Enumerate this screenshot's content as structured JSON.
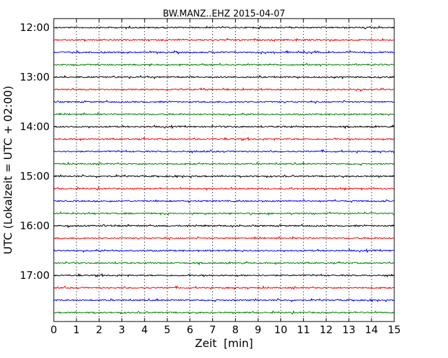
{
  "chart_data": {
    "type": "line",
    "title": "BW.MANZ..EHZ 2015-04-07",
    "xlabel": "Zeit  [min]",
    "ylabel": "UTC (Lokalzeit = UTC + 02:00)",
    "xlim": [
      0,
      15
    ],
    "x_ticks": [
      "0",
      "1",
      "2",
      "3",
      "4",
      "5",
      "6",
      "7",
      "8",
      "9",
      "10",
      "11",
      "12",
      "13",
      "14",
      "15"
    ],
    "y_tick_labels": [
      "12:00",
      "13:00",
      "14:00",
      "15:00",
      "16:00",
      "17:00"
    ],
    "grid": "vertical dotted",
    "trace_interval_min": 15,
    "first_trace": "12:00",
    "trace_count": 24,
    "trace_colors": [
      "#000000",
      "#ff0000",
      "#0000ff",
      "#008000"
    ]
  }
}
